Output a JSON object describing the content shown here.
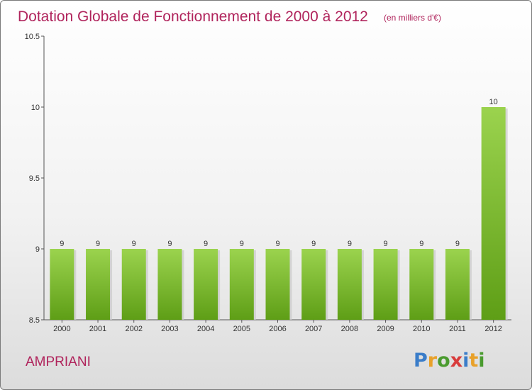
{
  "header": {
    "title": "Dotation Globale de Fonctionnement de 2000 à 2012",
    "unit_note": "(en milliers d'€)"
  },
  "commune": "AMPRIANI",
  "logo": {
    "text": "Proxiti",
    "colors": [
      "#3a7dc9",
      "#e8a12a",
      "#4a9b2f",
      "#d83b3b",
      "#3a7dc9",
      "#e8a12a",
      "#4a9b2f"
    ]
  },
  "colors": {
    "title": "#b0245c",
    "bar_top": "#9bd34e",
    "bar_bottom": "#5e9e16"
  },
  "chart_data": {
    "type": "bar",
    "categories": [
      "2000",
      "2001",
      "2002",
      "2003",
      "2004",
      "2005",
      "2006",
      "2007",
      "2008",
      "2009",
      "2010",
      "2011",
      "2012"
    ],
    "values": [
      9,
      9,
      9,
      9,
      9,
      9,
      9,
      9,
      9,
      9,
      9,
      9,
      10
    ],
    "data_labels": [
      "9",
      "9",
      "9",
      "9",
      "9",
      "9",
      "9",
      "9",
      "9",
      "9",
      "9",
      "9",
      "10"
    ],
    "ylim": [
      8.5,
      10.5
    ],
    "yticks": [
      8.5,
      9,
      9.5,
      10,
      10.5
    ],
    "ytick_labels": [
      "8.5",
      "9",
      "9.5",
      "10",
      "10.5"
    ],
    "grid": false
  }
}
